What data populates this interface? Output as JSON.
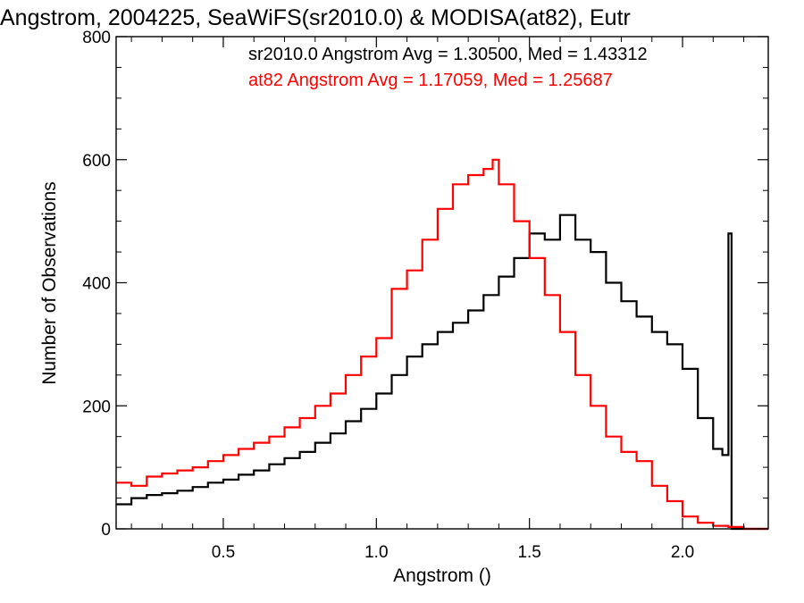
{
  "chart_data": {
    "type": "line",
    "title": "Angstrom, 2004225, SeaWiFS(sr2010.0) & MODISA(at82), Eutr",
    "xlabel": "Angstrom ()",
    "ylabel": "Number of Observations",
    "xlim": [
      0.15,
      2.28
    ],
    "ylim": [
      0,
      800
    ],
    "x_ticks": [
      "0.5",
      "1.0",
      "1.5",
      "2.0"
    ],
    "y_ticks": [
      "0",
      "200",
      "400",
      "600",
      "800"
    ],
    "grid": false,
    "legend_placement": "top-right",
    "annotations": [
      {
        "text": "sr2010.0 Angstrom Avg = 1.30500, Med = 1.43312",
        "color": "#000000"
      },
      {
        "text": "at82 Angstrom Avg = 1.17059, Med = 1.25687",
        "color": "#ff0000"
      }
    ],
    "series": [
      {
        "label": "sr2010.0",
        "color": "#000000",
        "x": [
          0.15,
          0.2,
          0.25,
          0.3,
          0.35,
          0.4,
          0.45,
          0.5,
          0.55,
          0.6,
          0.65,
          0.7,
          0.75,
          0.8,
          0.85,
          0.9,
          0.95,
          1.0,
          1.05,
          1.1,
          1.15,
          1.2,
          1.25,
          1.3,
          1.35,
          1.4,
          1.45,
          1.5,
          1.55,
          1.6,
          1.65,
          1.7,
          1.75,
          1.8,
          1.85,
          1.9,
          1.95,
          2.0,
          2.05,
          2.1,
          2.13,
          2.15,
          2.16,
          2.2,
          2.28
        ],
        "y": [
          40,
          50,
          55,
          58,
          62,
          68,
          75,
          80,
          88,
          95,
          105,
          115,
          125,
          140,
          155,
          175,
          195,
          220,
          250,
          280,
          300,
          320,
          335,
          355,
          380,
          410,
          440,
          480,
          470,
          510,
          470,
          450,
          400,
          370,
          345,
          320,
          300,
          260,
          180,
          130,
          120,
          480,
          0,
          0,
          0
        ]
      },
      {
        "label": "at82",
        "color": "#ff0000",
        "x": [
          0.15,
          0.2,
          0.25,
          0.3,
          0.35,
          0.4,
          0.45,
          0.5,
          0.55,
          0.6,
          0.65,
          0.7,
          0.75,
          0.8,
          0.85,
          0.9,
          0.95,
          1.0,
          1.05,
          1.1,
          1.15,
          1.2,
          1.25,
          1.3,
          1.35,
          1.38,
          1.4,
          1.45,
          1.5,
          1.55,
          1.6,
          1.65,
          1.7,
          1.75,
          1.8,
          1.85,
          1.9,
          1.95,
          2.0,
          2.05,
          2.1,
          2.15,
          2.2,
          2.28
        ],
        "y": [
          75,
          70,
          85,
          90,
          95,
          100,
          110,
          120,
          130,
          140,
          150,
          165,
          180,
          200,
          220,
          250,
          280,
          310,
          390,
          420,
          470,
          520,
          560,
          575,
          585,
          600,
          560,
          500,
          440,
          380,
          320,
          250,
          200,
          150,
          125,
          110,
          70,
          45,
          20,
          10,
          5,
          3,
          0,
          0
        ]
      }
    ]
  }
}
